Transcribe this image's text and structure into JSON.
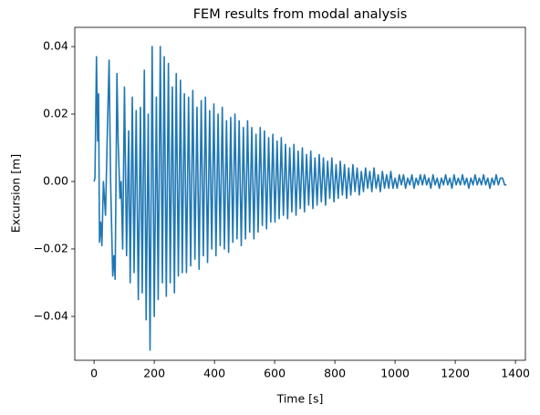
{
  "chart_data": {
    "type": "line",
    "title": "FEM results from modal analysis",
    "x_label": "Time [s]",
    "y_label": "Excursion [m]",
    "xlim": [
      -64,
      1433
    ],
    "ylim": [
      -0.053,
      0.0457
    ],
    "xticks": [
      0,
      200,
      400,
      600,
      800,
      1000,
      1200,
      1400
    ],
    "yticks": [
      {
        "value": -0.04,
        "label": "−0.04"
      },
      {
        "value": -0.02,
        "label": "−0.02"
      },
      {
        "value": 0,
        "label": "0.00"
      },
      {
        "value": 0.02,
        "label": "0.02"
      },
      {
        "value": 0.04,
        "label": "0.04"
      }
    ],
    "grid": false,
    "series": [
      {
        "color": "#1f77b4",
        "x": [
          0,
          3,
          8,
          12,
          15,
          18,
          22,
          26,
          31,
          38,
          45,
          50,
          55,
          62,
          66,
          70,
          76,
          80,
          86,
          90,
          95,
          101,
          108,
          115,
          120,
          127,
          133,
          140,
          147,
          154,
          160,
          167,
          173,
          180,
          186,
          193,
          200,
          207,
          213,
          220,
          227,
          233,
          240,
          247,
          253,
          260,
          267,
          273,
          280,
          287,
          293,
          300,
          307,
          314,
          321,
          328,
          335,
          342,
          349,
          356,
          363,
          370,
          377,
          384,
          391,
          398,
          405,
          412,
          419,
          426,
          433,
          440,
          447,
          454,
          461,
          468,
          475,
          482,
          489,
          496,
          503,
          510,
          517,
          524,
          531,
          538,
          545,
          552,
          559,
          566,
          573,
          580,
          587,
          594,
          601,
          608,
          615,
          622,
          629,
          636,
          643,
          650,
          657,
          664,
          671,
          678,
          685,
          692,
          699,
          706,
          713,
          720,
          727,
          734,
          741,
          748,
          755,
          762,
          769,
          776,
          783,
          790,
          797,
          804,
          811,
          818,
          825,
          832,
          839,
          846,
          853,
          860,
          867,
          874,
          881,
          888,
          895,
          902,
          909,
          916,
          923,
          930,
          937,
          944,
          951,
          958,
          965,
          972,
          979,
          986,
          993,
          1000,
          1007,
          1014,
          1021,
          1028,
          1035,
          1042,
          1049,
          1056,
          1063,
          1070,
          1077,
          1084,
          1091,
          1098,
          1105,
          1112,
          1119,
          1126,
          1133,
          1140,
          1147,
          1154,
          1161,
          1168,
          1175,
          1182,
          1189,
          1196,
          1203,
          1210,
          1217,
          1224,
          1231,
          1238,
          1245,
          1252,
          1259,
          1266,
          1273,
          1280,
          1287,
          1294,
          1301,
          1308,
          1315,
          1322,
          1329,
          1336,
          1343,
          1350,
          1357,
          1364,
          1370
        ],
        "values": [
          0,
          0.001,
          0.037,
          0.012,
          0.026,
          -0.018,
          -0.012,
          -0.019,
          0.0,
          -0.01,
          0.018,
          0.036,
          0.0,
          -0.028,
          -0.022,
          -0.029,
          0.032,
          0.012,
          -0.005,
          0.0,
          -0.02,
          0.028,
          -0.022,
          0.015,
          -0.03,
          0.025,
          -0.027,
          0.021,
          -0.035,
          0.022,
          -0.033,
          0.033,
          -0.041,
          0.02,
          -0.05,
          0.04,
          -0.04,
          0.025,
          -0.035,
          0.04,
          -0.03,
          0.037,
          -0.034,
          0.035,
          -0.03,
          0.028,
          -0.033,
          0.032,
          -0.028,
          0.03,
          -0.027,
          0.026,
          -0.027,
          0.025,
          -0.025,
          0.027,
          -0.023,
          0.022,
          -0.026,
          0.024,
          -0.022,
          0.025,
          -0.024,
          0.021,
          -0.02,
          0.023,
          -0.022,
          0.02,
          -0.019,
          0.022,
          -0.02,
          0.018,
          -0.021,
          0.019,
          -0.018,
          0.02,
          -0.017,
          0.018,
          -0.019,
          0.016,
          -0.017,
          0.018,
          -0.015,
          0.016,
          -0.017,
          0.014,
          -0.015,
          0.016,
          -0.013,
          0.015,
          -0.014,
          0.013,
          -0.012,
          0.014,
          -0.012,
          0.012,
          -0.011,
          0.013,
          -0.01,
          0.011,
          -0.011,
          0.01,
          -0.009,
          0.011,
          -0.01,
          0.009,
          -0.008,
          0.01,
          -0.009,
          0.008,
          -0.007,
          0.009,
          -0.008,
          0.007,
          -0.007,
          0.008,
          -0.006,
          0.007,
          -0.007,
          0.006,
          -0.005,
          0.007,
          -0.006,
          0.005,
          -0.005,
          0.006,
          -0.004,
          0.005,
          -0.005,
          0.004,
          -0.004,
          0.005,
          -0.003,
          0.004,
          -0.004,
          0.003,
          -0.003,
          0.004,
          -0.002,
          0.003,
          -0.003,
          0.004,
          -0.002,
          0.002,
          -0.003,
          0.003,
          -0.002,
          0.002,
          -0.002,
          0.003,
          -0.002,
          0.001,
          -0.002,
          0.002,
          -0.001,
          0.002,
          -0.002,
          0.001,
          -0.001,
          0.002,
          -0.002,
          0.001,
          -0.001,
          0.002,
          -0.001,
          0.002,
          -0.001,
          0.001,
          -0.002,
          0.002,
          -0.001,
          0.001,
          -0.002,
          0.001,
          -0.001,
          0.002,
          -0.001,
          0.001,
          -0.002,
          0.002,
          -0.001,
          0.001,
          -0.001,
          0.002,
          -0.001,
          0.001,
          -0.002,
          0.001,
          -0.001,
          0.002,
          -0.001,
          0.001,
          -0.001,
          0.002,
          -0.001,
          0.001,
          -0.002,
          0.001,
          -0.001,
          0.002,
          -0.001,
          0.001,
          0.001,
          -0.001,
          -0.001
        ]
      }
    ]
  }
}
